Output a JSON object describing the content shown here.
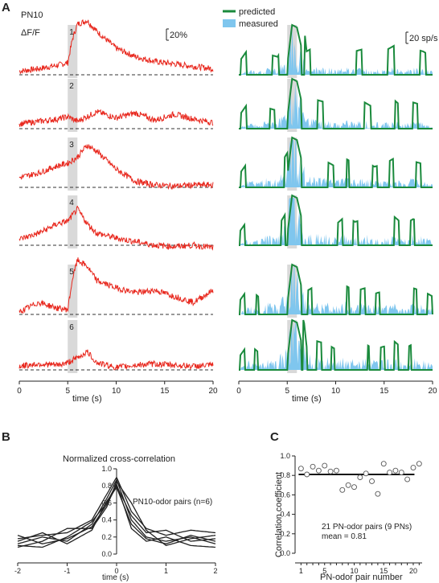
{
  "figure": {
    "panel_a_label": "A",
    "panel_b_label": "B",
    "panel_c_label": "C"
  },
  "panel_a_left": {
    "title_line1": "PN10",
    "title_line2": "ΔF/F",
    "scale_label": "20%",
    "trial_labels": [
      "1",
      "2",
      "3",
      "4",
      "5",
      "6"
    ],
    "x_ticks": [
      "0",
      "5",
      "10",
      "15",
      "20"
    ],
    "x_label": "time (s)"
  },
  "panel_a_right": {
    "legend_predicted": "predicted",
    "legend_measured": "measured",
    "scale_label": "20 sp/s",
    "x_ticks": [
      "0",
      "5",
      "10",
      "15",
      "20"
    ],
    "x_label": "time (s)"
  },
  "colors": {
    "fluorescence": "#e8281e",
    "predicted": "#1a8a3c",
    "measured": "#7fc6ee",
    "stimulus": "#d9d9d9"
  },
  "chart_data": [
    {
      "type": "line",
      "title": "",
      "xlabel": "time (s)",
      "ylabel": "ΔF/F",
      "xlim": [
        0,
        20
      ],
      "stimulus_window_s": [
        5,
        6
      ],
      "series": [
        {
          "name": "1",
          "x": [
            0,
            2,
            4,
            5,
            5.5,
            6,
            7,
            8,
            10,
            12,
            14,
            16,
            18,
            20
          ],
          "values": [
            0.03,
            0.05,
            0.08,
            0.1,
            0.3,
            0.42,
            0.45,
            0.36,
            0.22,
            0.15,
            0.11,
            0.09,
            0.07,
            0.05
          ]
        },
        {
          "name": "2",
          "x": [
            0,
            2,
            4,
            5,
            6,
            8,
            10,
            12,
            14,
            16,
            18,
            20
          ],
          "values": [
            0.04,
            0.06,
            0.08,
            0.1,
            0.06,
            0.14,
            0.09,
            0.13,
            0.07,
            0.12,
            0.08,
            0.05
          ]
        },
        {
          "name": "3",
          "x": [
            0,
            2,
            4,
            5,
            6,
            7,
            8,
            10,
            12,
            14,
            16,
            18,
            20
          ],
          "values": [
            0.08,
            0.12,
            0.18,
            0.2,
            0.25,
            0.35,
            0.3,
            0.15,
            0.05,
            0.02,
            0.01,
            0.02,
            0.02
          ]
        },
        {
          "name": "4",
          "x": [
            0,
            2,
            4,
            5,
            6,
            7,
            8,
            10,
            12,
            14,
            16,
            18,
            20
          ],
          "values": [
            0.05,
            0.1,
            0.18,
            0.2,
            0.3,
            0.18,
            0.1,
            0.06,
            0.03,
            0.0,
            -0.01,
            0.0,
            -0.02
          ]
        },
        {
          "name": "5",
          "x": [
            0,
            2,
            4,
            5,
            5.5,
            6,
            7,
            8,
            10,
            12,
            14,
            16,
            18,
            20
          ],
          "values": [
            0.02,
            0.1,
            0.05,
            0.04,
            0.3,
            0.45,
            0.4,
            0.28,
            0.22,
            0.18,
            0.2,
            0.15,
            0.1,
            0.2
          ]
        },
        {
          "name": "6",
          "x": [
            0,
            2,
            4,
            5,
            6,
            7,
            8,
            10,
            12,
            14,
            16,
            18,
            20
          ],
          "values": [
            0.03,
            0.05,
            0.04,
            0.06,
            0.1,
            0.15,
            0.06,
            0.02,
            0.04,
            0.05,
            0.04,
            0.03,
            0.04
          ]
        }
      ]
    },
    {
      "type": "area",
      "title": "",
      "xlabel": "time (s)",
      "ylabel": "sp/s",
      "xlim": [
        0,
        20
      ],
      "series": [
        {
          "name": "predicted",
          "x": [
            0,
            1,
            2,
            3,
            4,
            5,
            5.5,
            6,
            7,
            8,
            9,
            10,
            11,
            12,
            13,
            14,
            15,
            16,
            17,
            18,
            19,
            20
          ],
          "values": [
            0,
            5,
            2,
            3,
            2,
            8,
            40,
            38,
            4,
            6,
            5,
            3,
            6,
            4,
            5,
            3,
            4,
            6,
            3,
            5,
            4,
            2
          ]
        },
        {
          "name": "measured",
          "x": [
            0,
            1,
            2,
            3,
            4,
            5,
            5.5,
            6,
            7,
            8,
            9,
            10,
            11,
            12,
            13,
            14,
            15,
            16,
            17,
            18,
            19,
            20
          ],
          "values": [
            0,
            3,
            2,
            4,
            3,
            10,
            42,
            20,
            5,
            4,
            4,
            3,
            4,
            3,
            4,
            3,
            3,
            4,
            2,
            4,
            3,
            2
          ]
        }
      ]
    },
    {
      "type": "line",
      "title": "Normalized cross-correlation",
      "annotation": "PN10-odor pairs (n=6)",
      "xlabel": "time (s)",
      "ylabel": "",
      "xlim": [
        -2,
        2
      ],
      "ylim": [
        0,
        1.0
      ],
      "x_ticks": [
        "-2",
        "-1",
        "0",
        "1",
        "2"
      ],
      "y_ticks": [
        "0.0",
        "0.2",
        "0.4",
        "0.6",
        "0.8",
        "1.0"
      ],
      "series": [
        {
          "x": [
            -2,
            -1.5,
            -1,
            -0.5,
            -0.2,
            0,
            0.3,
            0.6,
            1,
            1.5,
            2
          ],
          "values": [
            0.18,
            0.22,
            0.25,
            0.4,
            0.7,
            0.9,
            0.5,
            0.3,
            0.22,
            0.28,
            0.25
          ]
        },
        {
          "x": [
            -2,
            -1.5,
            -1,
            -0.5,
            -0.2,
            0,
            0.3,
            0.6,
            1,
            1.5,
            2
          ],
          "values": [
            0.12,
            0.2,
            0.15,
            0.35,
            0.65,
            0.87,
            0.4,
            0.2,
            0.15,
            0.2,
            0.12
          ]
        },
        {
          "x": [
            -2,
            -1.5,
            -1,
            -0.5,
            -0.2,
            0,
            0.3,
            0.6,
            1,
            1.5,
            2
          ],
          "values": [
            0.08,
            0.15,
            0.3,
            0.3,
            0.55,
            0.85,
            0.6,
            0.28,
            0.1,
            0.18,
            0.22
          ]
        },
        {
          "x": [
            -2,
            -1.5,
            -1,
            -0.5,
            -0.2,
            0,
            0.3,
            0.6,
            1,
            1.5,
            2
          ],
          "values": [
            0.1,
            0.08,
            0.2,
            0.38,
            0.6,
            0.82,
            0.3,
            0.15,
            0.2,
            0.1,
            0.08
          ]
        },
        {
          "x": [
            -2,
            -1.5,
            -1,
            -0.5,
            -0.2,
            0,
            0.3,
            0.6,
            1,
            1.5,
            2
          ],
          "values": [
            0.22,
            0.12,
            0.18,
            0.32,
            0.58,
            0.8,
            0.45,
            0.25,
            0.28,
            0.15,
            0.18
          ]
        },
        {
          "x": [
            -2,
            -1.5,
            -1,
            -0.5,
            -0.2,
            0,
            0.3,
            0.6,
            1,
            1.5,
            2
          ],
          "values": [
            0.15,
            0.25,
            0.12,
            0.28,
            0.62,
            0.78,
            0.35,
            0.18,
            0.12,
            0.22,
            0.15
          ]
        }
      ]
    },
    {
      "type": "scatter",
      "title": "",
      "xlabel": "PN-odor pair number",
      "ylabel": "Correlation coefficient",
      "xlim": [
        0,
        21.5
      ],
      "ylim": [
        0,
        1.0
      ],
      "x_ticks": [
        "1",
        "5",
        "10",
        "15",
        "20"
      ],
      "y_ticks": [
        "0.0",
        "0.2",
        "0.4",
        "0.6",
        "0.8",
        "1.0"
      ],
      "x": [
        1,
        2,
        3,
        4,
        5,
        6,
        7,
        8,
        9,
        10,
        11,
        12,
        13,
        14,
        15,
        16,
        17,
        18,
        19,
        20,
        21
      ],
      "values": [
        0.87,
        0.81,
        0.89,
        0.85,
        0.9,
        0.84,
        0.85,
        0.65,
        0.7,
        0.68,
        0.78,
        0.82,
        0.74,
        0.61,
        0.92,
        0.83,
        0.85,
        0.83,
        0.76,
        0.88,
        0.92
      ],
      "mean_line": 0.81,
      "annotation_line1": "21 PN-odor pairs (9 PNs)",
      "annotation_line2": "mean = 0.81"
    }
  ]
}
